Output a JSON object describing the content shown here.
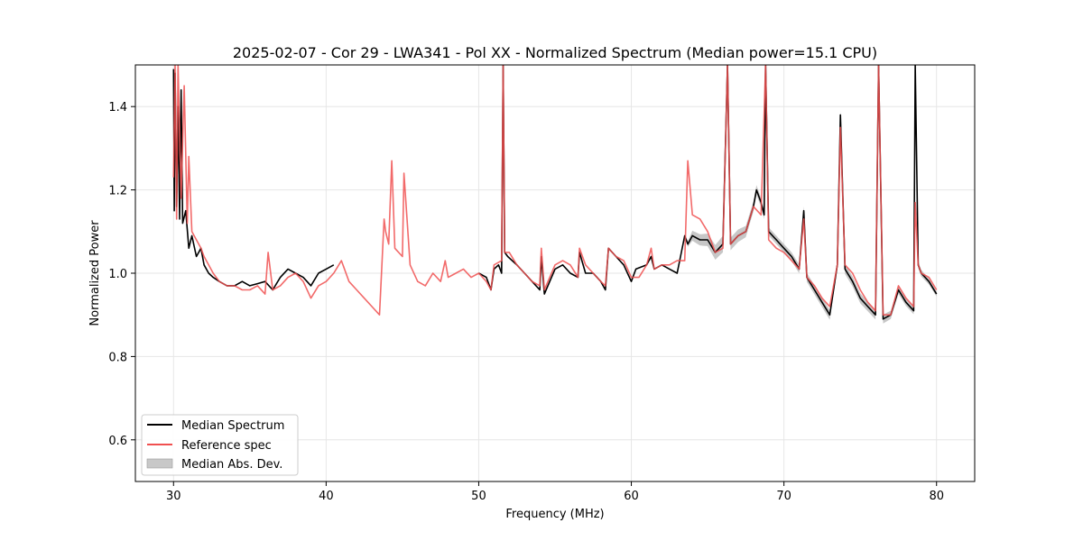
{
  "chart_data": {
    "type": "line",
    "title": "2025-02-07 - Cor 29 - LWA341 - Pol XX - Normalized Spectrum (Median power=15.1 CPU)",
    "xlabel": "Frequency (MHz)",
    "ylabel": "Normalized Power",
    "xlim": [
      27.5,
      82.5
    ],
    "ylim": [
      0.5,
      1.5
    ],
    "xticks": [
      30,
      40,
      50,
      60,
      70,
      80
    ],
    "yticks": [
      0.6,
      0.8,
      1.0,
      1.2,
      1.4
    ],
    "xtick_labels": [
      "30",
      "40",
      "50",
      "60",
      "70",
      "80"
    ],
    "ytick_labels": [
      "0.6",
      "0.8",
      "1.0",
      "1.2",
      "1.4"
    ],
    "grid": true,
    "legend_position": "lower-left",
    "colors": {
      "median": "#000000",
      "reference": "#f05050",
      "mad": "#bdbdbd",
      "overlap": "#8b0000"
    },
    "series": [
      {
        "name": "Median Spectrum",
        "segments": [
          {
            "x": [
              30.0,
              30.05,
              30.1,
              30.2,
              30.3,
              30.4,
              30.5,
              30.6,
              30.8,
              31.0,
              31.2,
              31.5,
              31.8,
              32.0,
              32.3,
              32.6,
              33.0,
              33.5,
              34.0,
              34.5,
              35.0,
              35.5,
              36.0,
              36.5,
              37.0,
              37.5,
              38.0,
              38.5,
              39.0,
              39.5,
              40.0,
              40.5
            ],
            "y": [
              1.49,
              1.15,
              1.48,
              1.16,
              1.4,
              1.13,
              1.44,
              1.12,
              1.15,
              1.06,
              1.09,
              1.04,
              1.06,
              1.02,
              1.0,
              0.99,
              0.98,
              0.97,
              0.97,
              0.98,
              0.97,
              0.975,
              0.98,
              0.96,
              0.99,
              1.01,
              1.0,
              0.99,
              0.97,
              1.0,
              1.01,
              1.02
            ]
          },
          {
            "x": [
              50.0,
              50.5,
              50.8,
              51.0,
              51.3,
              51.5,
              51.6,
              51.7,
              51.9,
              52.5,
              53.0,
              53.5,
              54.0,
              54.1,
              54.3,
              55.0,
              55.5,
              56.0,
              56.5,
              56.6,
              57.0,
              57.5,
              58.0,
              58.3,
              58.5,
              59.0,
              59.5,
              60.0,
              60.3,
              61.0,
              61.3,
              61.5,
              62.0,
              62.5,
              63.0,
              63.5,
              63.7,
              64.0,
              64.5,
              65.0,
              65.5,
              66.0,
              66.3,
              66.5,
              67.0,
              67.5,
              68.0,
              68.2,
              68.5,
              68.7,
              68.8,
              69.0,
              69.5,
              70.0,
              70.5,
              71.0,
              71.3,
              71.5,
              72.0,
              72.5,
              73.0,
              73.5,
              73.7,
              74.0,
              74.5,
              75.0,
              75.5,
              76.0,
              76.2,
              76.5,
              77.0,
              77.5,
              78.0,
              78.5,
              78.6,
              78.8,
              79.0,
              79.5,
              80.0
            ],
            "y": [
              1.0,
              0.99,
              0.96,
              1.01,
              1.02,
              1.0,
              1.5,
              1.05,
              1.04,
              1.02,
              1.0,
              0.98,
              0.96,
              1.04,
              0.95,
              1.01,
              1.02,
              1.0,
              0.99,
              1.05,
              1.0,
              1.0,
              0.98,
              0.96,
              1.06,
              1.04,
              1.02,
              0.98,
              1.01,
              1.02,
              1.04,
              1.01,
              1.02,
              1.01,
              1.0,
              1.09,
              1.07,
              1.09,
              1.08,
              1.08,
              1.05,
              1.07,
              1.5,
              1.07,
              1.09,
              1.1,
              1.16,
              1.2,
              1.17,
              1.14,
              1.5,
              1.1,
              1.08,
              1.06,
              1.04,
              1.01,
              1.15,
              0.99,
              0.96,
              0.93,
              0.9,
              1.02,
              1.38,
              1.01,
              0.98,
              0.94,
              0.92,
              0.9,
              1.5,
              0.89,
              0.9,
              0.96,
              0.93,
              0.91,
              1.5,
              1.02,
              1.0,
              0.98,
              0.95
            ]
          }
        ]
      },
      {
        "name": "Reference spec",
        "segments": [
          {
            "x": [
              30.0,
              30.1,
              30.2,
              30.3,
              30.5,
              30.7,
              30.9,
              31.0,
              31.2,
              31.5,
              31.8,
              32.0,
              32.3,
              32.6,
              33.0,
              33.5,
              34.0,
              34.5,
              35.0,
              35.5,
              36.0,
              36.2,
              36.5,
              37.0,
              37.5,
              38.0,
              38.5,
              39.0,
              39.5,
              40.0,
              40.5,
              41.0,
              41.5,
              42.0,
              42.5,
              43.0,
              43.5,
              43.8,
              43.9,
              44.1,
              44.3,
              44.5,
              45.0,
              45.1,
              45.5,
              46.0,
              46.5,
              47.0,
              47.5,
              47.8,
              48.0,
              48.5,
              49.0,
              49.5,
              50.0,
              50.5,
              50.8,
              51.0,
              51.5,
              51.6,
              51.7,
              52.0,
              52.5,
              53.0,
              53.5,
              54.0,
              54.1,
              54.3,
              55.0,
              55.5,
              56.0,
              56.5,
              56.6,
              57.0,
              57.5,
              58.0,
              58.3,
              58.5,
              59.0,
              59.5,
              60.0,
              60.5,
              61.0,
              61.3,
              61.5,
              62.0,
              62.5,
              63.0,
              63.5,
              63.7,
              64.0,
              64.5,
              65.0,
              65.5,
              66.0,
              66.3,
              66.5,
              67.0,
              67.5,
              68.0,
              68.5,
              68.8,
              69.0,
              69.5,
              70.0,
              70.5,
              71.0,
              71.3,
              71.5,
              72.0,
              72.5,
              73.0,
              73.5,
              73.7,
              74.0,
              74.5,
              75.0,
              75.5,
              76.0,
              76.2,
              76.5,
              77.0,
              77.5,
              78.0,
              78.5,
              78.6,
              78.8,
              79.0,
              79.5,
              80.0
            ],
            "y": [
              1.23,
              1.5,
              1.13,
              1.5,
              1.18,
              1.45,
              1.12,
              1.28,
              1.1,
              1.08,
              1.06,
              1.04,
              1.02,
              1.0,
              0.98,
              0.97,
              0.97,
              0.96,
              0.96,
              0.97,
              0.95,
              1.05,
              0.96,
              0.97,
              0.99,
              1.0,
              0.98,
              0.94,
              0.97,
              0.98,
              1.0,
              1.03,
              0.98,
              0.96,
              0.94,
              0.92,
              0.9,
              1.13,
              1.1,
              1.07,
              1.27,
              1.06,
              1.04,
              1.24,
              1.02,
              0.98,
              0.97,
              1.0,
              0.98,
              1.03,
              0.99,
              1.0,
              1.01,
              0.99,
              1.0,
              0.98,
              0.96,
              1.02,
              1.03,
              1.5,
              1.05,
              1.05,
              1.02,
              1.0,
              0.98,
              0.97,
              1.06,
              0.96,
              1.02,
              1.03,
              1.02,
              0.99,
              1.06,
              1.02,
              1.0,
              0.98,
              0.97,
              1.06,
              1.04,
              1.03,
              0.99,
              0.99,
              1.02,
              1.06,
              1.01,
              1.02,
              1.02,
              1.03,
              1.03,
              1.27,
              1.14,
              1.13,
              1.1,
              1.05,
              1.06,
              1.5,
              1.07,
              1.09,
              1.1,
              1.16,
              1.14,
              1.5,
              1.08,
              1.06,
              1.05,
              1.03,
              1.01,
              1.13,
              0.99,
              0.97,
              0.94,
              0.92,
              1.02,
              1.35,
              1.02,
              1.0,
              0.96,
              0.93,
              0.91,
              1.5,
              0.9,
              0.9,
              0.97,
              0.94,
              0.92,
              1.17,
              1.02,
              1.0,
              0.99,
              0.96
            ]
          }
        ]
      },
      {
        "name": "Median Abs. Dev.",
        "band_x": [
          63.6,
          64.0,
          65.0,
          66.0,
          66.5,
          67.0,
          68.0,
          69.0,
          70.0,
          73.5,
          75.0,
          77.0,
          79.0,
          80.0
        ],
        "band_half_width": [
          0.005,
          0.012,
          0.015,
          0.02,
          0.015,
          0.015,
          0.012,
          0.01,
          0.01,
          0.012,
          0.012,
          0.01,
          0.008,
          0.006
        ]
      }
    ],
    "legend": [
      {
        "label": "Median Spectrum",
        "kind": "line",
        "color": "#000000"
      },
      {
        "label": "Reference spec",
        "kind": "line",
        "color": "#f05050"
      },
      {
        "label": "Median Abs. Dev.",
        "kind": "patch",
        "color": "#c8c8c8"
      }
    ]
  }
}
